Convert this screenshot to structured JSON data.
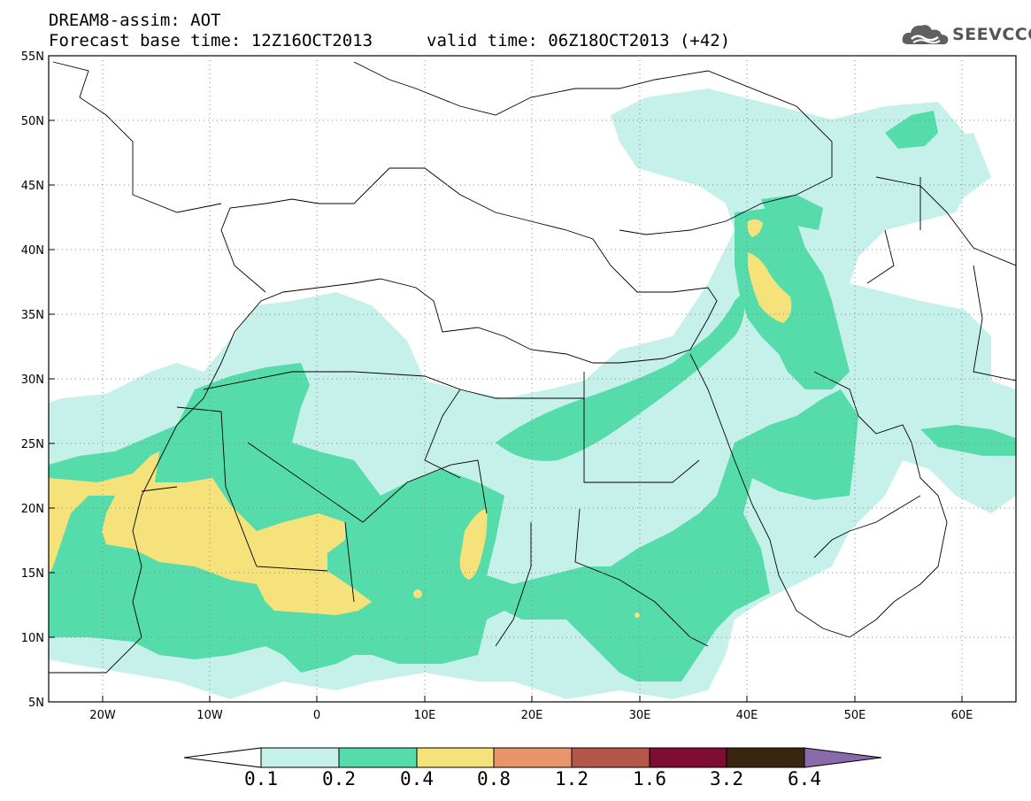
{
  "header": {
    "title": "DREAM8-assim: AOT",
    "base_time": "Forecast base time: 12Z16OCT2013",
    "valid_time": "valid time: 06Z18OCT2013 (+42)"
  },
  "logo": {
    "text": "SEEVCCC",
    "icon": "cloud-icon"
  },
  "axes": {
    "lat_labels": [
      "55N",
      "50N",
      "45N",
      "40N",
      "35N",
      "30N",
      "25N",
      "20N",
      "15N",
      "10N",
      "5N"
    ],
    "lon_labels": [
      "20W",
      "10W",
      "0",
      "10E",
      "20E",
      "30E",
      "40E",
      "50E",
      "60E"
    ]
  },
  "colorbar": {
    "labels": [
      "0.1",
      "0.2",
      "0.4",
      "0.8",
      "1.2",
      "1.6",
      "3.2",
      "6.4"
    ],
    "colors": [
      "#ffffff",
      "#c6f0ea",
      "#55dcaa",
      "#f5e27a",
      "#e8956c",
      "#b4574a",
      "#7e0c35",
      "#3a2510",
      "#8a6aa8"
    ]
  },
  "palette": {
    "c1": "#c6f0ea",
    "c2": "#55dcaa",
    "c3": "#f5e27a"
  }
}
